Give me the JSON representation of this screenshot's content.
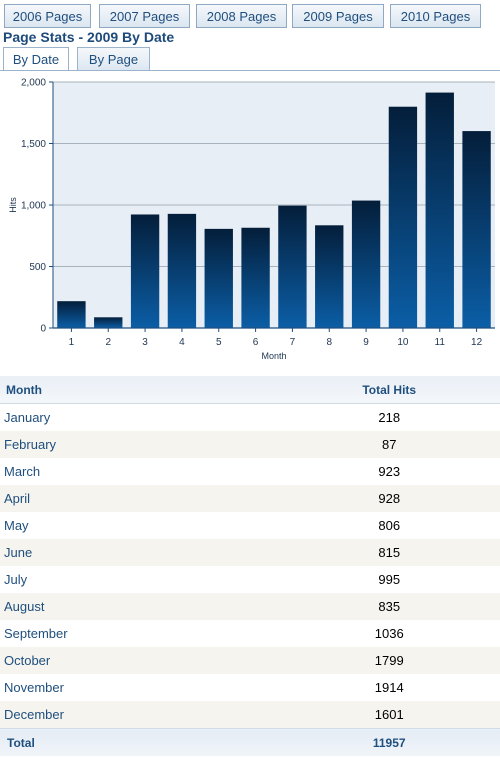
{
  "year_tabs": [
    "2006 Pages",
    "2007 Pages",
    "2008 Pages",
    "2009 Pages",
    "2010 Pages"
  ],
  "page_title": "Page Stats - 2009 By Date",
  "view_tabs": [
    "By Date",
    "By Page"
  ],
  "colors": {
    "bar_top": "#041e3a",
    "bar_bottom": "#0b5ea6",
    "plot_bg": "#e8eef6",
    "axis": "#1f4f7e",
    "link_text": "#1f4f7e"
  },
  "chart_data": {
    "type": "bar",
    "categories": [
      "1",
      "2",
      "3",
      "4",
      "5",
      "6",
      "7",
      "8",
      "9",
      "10",
      "11",
      "12"
    ],
    "values": [
      218,
      87,
      923,
      928,
      806,
      815,
      995,
      835,
      1036,
      1799,
      1914,
      1601
    ],
    "xlabel": "Month",
    "ylabel": "Hits",
    "ylim": [
      0,
      2000
    ],
    "yticks": [
      "0",
      "500",
      "1,000",
      "1,500",
      "2,000"
    ],
    "grid": true,
    "legend": "none"
  },
  "table": {
    "headers": {
      "month": "Month",
      "hits": "Total Hits"
    },
    "rows": [
      {
        "month": "January",
        "hits": "218"
      },
      {
        "month": "February",
        "hits": "87"
      },
      {
        "month": "March",
        "hits": "923"
      },
      {
        "month": "April",
        "hits": "928"
      },
      {
        "month": "May",
        "hits": "806"
      },
      {
        "month": "June",
        "hits": "815"
      },
      {
        "month": "July",
        "hits": "995"
      },
      {
        "month": "August",
        "hits": "835"
      },
      {
        "month": "September",
        "hits": "1036"
      },
      {
        "month": "October",
        "hits": "1799"
      },
      {
        "month": "November",
        "hits": "1914"
      },
      {
        "month": "December",
        "hits": "1601"
      }
    ],
    "total": {
      "label": "Total",
      "value": "11957"
    }
  }
}
